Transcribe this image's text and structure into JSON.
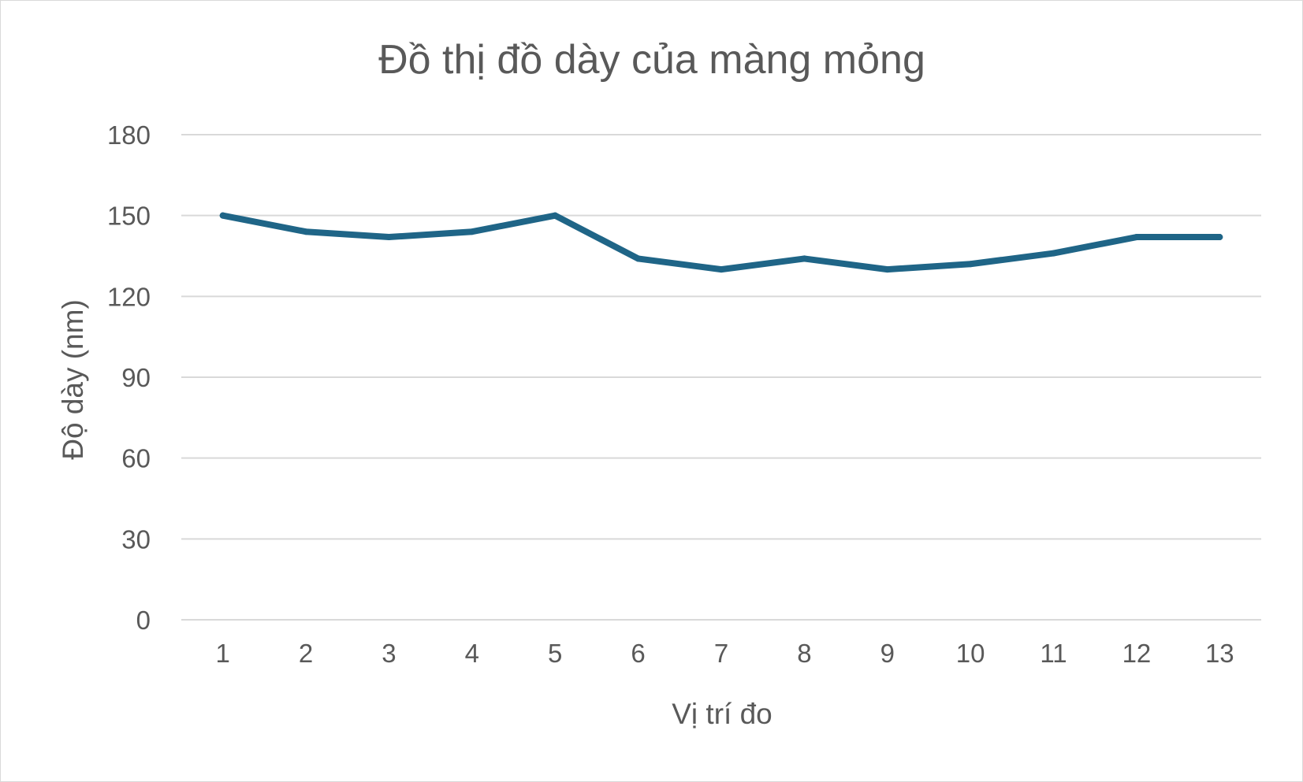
{
  "chart_data": {
    "type": "line",
    "title": "Đồ thị đồ dày của màng mỏng",
    "xlabel": "Vị trí đo",
    "ylabel": "Độ dày (nm)",
    "categories": [
      "1",
      "2",
      "3",
      "4",
      "5",
      "6",
      "7",
      "8",
      "9",
      "10",
      "11",
      "12",
      "13"
    ],
    "series": [
      {
        "values": [
          150,
          144,
          142,
          144,
          150,
          134,
          130,
          134,
          130,
          132,
          136,
          142,
          142
        ],
        "color": "#1f6587"
      }
    ],
    "ylim": [
      0,
      180
    ],
    "yticks": [
      0,
      30,
      60,
      90,
      120,
      150,
      180
    ],
    "grid": true,
    "legend": "none"
  }
}
